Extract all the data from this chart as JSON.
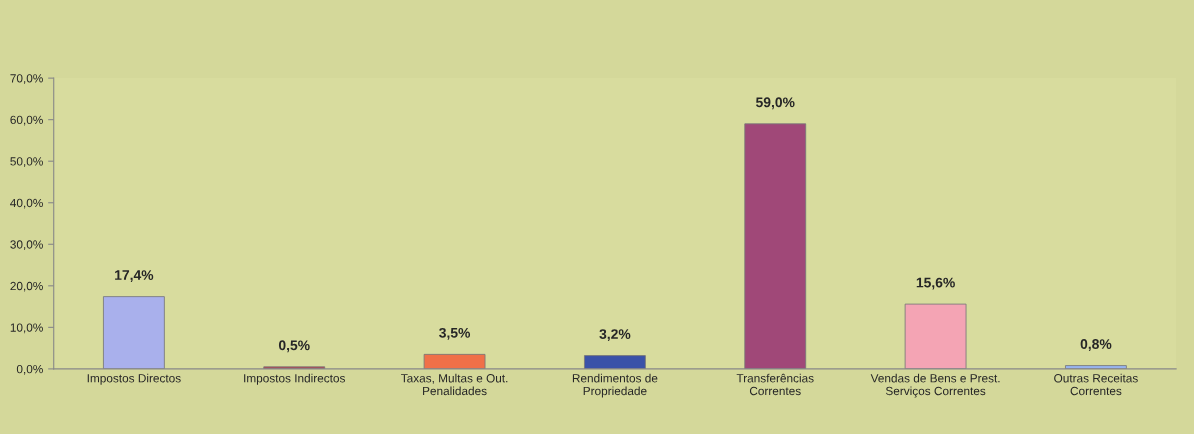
{
  "chart_data": {
    "type": "bar",
    "categories": [
      "Impostos Directos",
      "Impostos Indirectos",
      "Taxas, Multas e Out.\nPenalidades",
      "Rendimentos de\nPropriedade",
      "Transferências\nCorrentes",
      "Vendas de Bens e Prest.\nServiços Correntes",
      "Outras Receitas\nCorrentes"
    ],
    "values": [
      17.4,
      0.5,
      3.5,
      3.2,
      59.0,
      15.6,
      0.8
    ],
    "colors": [
      "#a9b0ec",
      "#b04858",
      "#f07048",
      "#3a52a8",
      "#a04878",
      "#f4a4b4",
      "#98b4f0"
    ],
    "value_labels": [
      "17,4%",
      "0,5%",
      "3,5%",
      "3,2%",
      "59,0%",
      "15,6%",
      "0,8%"
    ],
    "ylim": [
      0,
      70
    ],
    "yticks": [
      {
        "value": 0,
        "label": "0,0%"
      },
      {
        "value": 10,
        "label": "10,0%"
      },
      {
        "value": 20,
        "label": "20,0%"
      },
      {
        "value": 30,
        "label": "30,0%"
      },
      {
        "value": 40,
        "label": "40,0%"
      },
      {
        "value": 50,
        "label": "50,0%"
      },
      {
        "value": 60,
        "label": "60,0%"
      },
      {
        "value": 70,
        "label": "70,0%"
      }
    ],
    "grid": false,
    "legend": false
  }
}
